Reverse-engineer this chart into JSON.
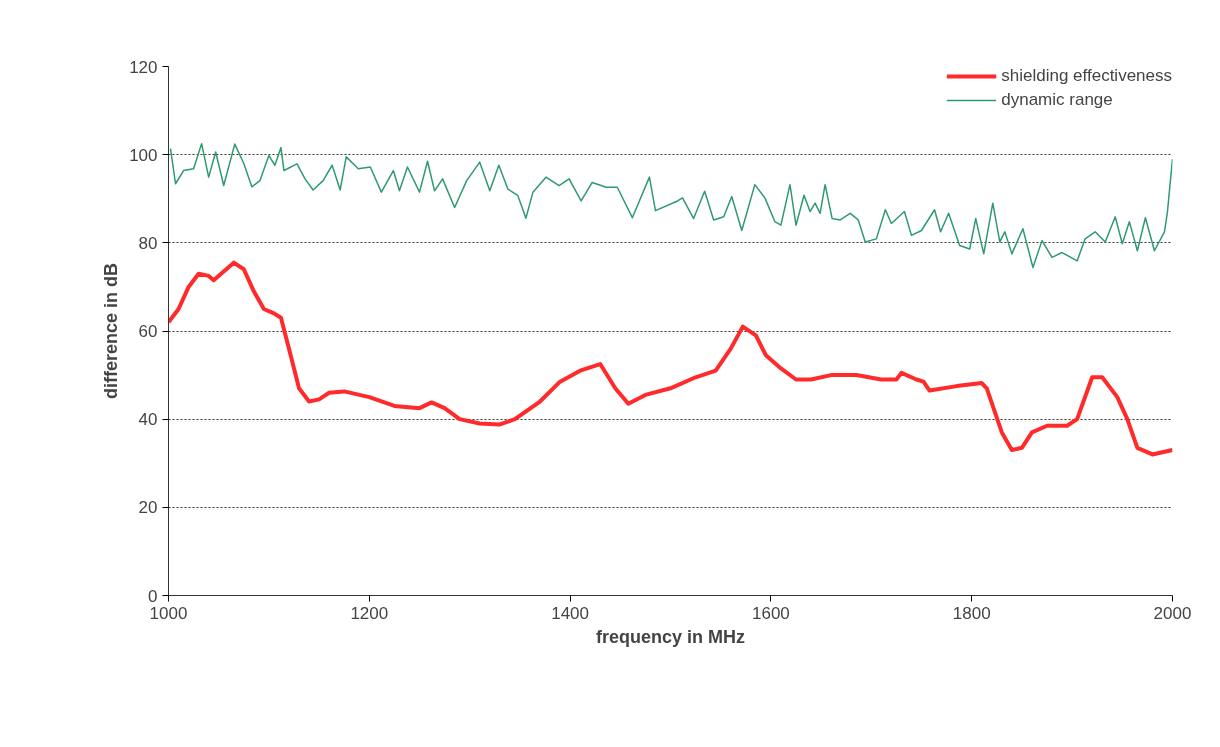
{
  "chart_data": {
    "type": "line",
    "xlabel": "frequency in MHz",
    "ylabel": "difference in dB",
    "xlim": [
      1000,
      2000
    ],
    "ylim": [
      0,
      120
    ],
    "xticks": [
      1000,
      1200,
      1400,
      1600,
      1800,
      2000
    ],
    "yticks": [
      0,
      20,
      40,
      60,
      80,
      100,
      120
    ],
    "grid": "y",
    "legend": "top right",
    "marker": "none",
    "line_style": "solid",
    "series": [
      {
        "name": "shielding effectiveness",
        "color": "#ff2a2a",
        "x": [
          1000,
          1010,
          1020,
          1030,
          1040,
          1045,
          1055,
          1065,
          1075,
          1085,
          1095,
          1105,
          1112,
          1120,
          1130,
          1140,
          1150,
          1160,
          1175,
          1200,
          1225,
          1250,
          1262,
          1275,
          1290,
          1310,
          1330,
          1345,
          1370,
          1390,
          1410,
          1430,
          1445,
          1458,
          1475,
          1500,
          1525,
          1545,
          1560,
          1572,
          1585,
          1595,
          1610,
          1625,
          1640,
          1660,
          1685,
          1710,
          1725,
          1730,
          1745,
          1752,
          1758,
          1785,
          1810,
          1815,
          1830,
          1840,
          1850,
          1860,
          1875,
          1895,
          1905,
          1920,
          1930,
          1945,
          1955,
          1965,
          1980,
          2000
        ],
        "values": [
          62,
          65,
          70,
          73,
          72.5,
          71.5,
          73.5,
          75.5,
          74,
          69,
          65,
          64,
          63,
          56,
          47,
          44,
          44.5,
          46,
          46.3,
          45,
          43,
          42.5,
          43.8,
          42.5,
          40,
          39,
          38.8,
          40,
          44,
          48.5,
          51,
          52.5,
          47,
          43.5,
          45.5,
          47,
          49.5,
          51,
          56,
          61,
          59,
          54.5,
          51.5,
          49,
          49,
          50,
          50,
          49,
          49,
          50.5,
          49,
          48.5,
          46.5,
          47.5,
          48.2,
          47,
          37,
          33,
          33.5,
          37,
          38.5,
          38.5,
          40,
          49.5,
          49.5,
          45,
          40,
          33.5,
          32,
          33
        ]
      },
      {
        "name": "dynamic range",
        "color": "#2e9a6e",
        "x": [
          1002,
          1007,
          1015,
          1025,
          1033,
          1040,
          1047,
          1055,
          1066,
          1075,
          1083,
          1091,
          1100,
          1106,
          1112,
          1115,
          1128,
          1136,
          1144,
          1154,
          1163,
          1171,
          1177,
          1189,
          1201,
          1212,
          1224,
          1230,
          1238,
          1250,
          1258,
          1265,
          1273,
          1285,
          1297,
          1310,
          1320,
          1329,
          1338,
          1348,
          1356,
          1363,
          1376,
          1389,
          1399,
          1411,
          1422,
          1436,
          1447,
          1462,
          1479,
          1485,
          1507,
          1512,
          1523,
          1534,
          1543,
          1553,
          1561,
          1571,
          1584,
          1594,
          1604,
          1610,
          1619,
          1625,
          1633,
          1639,
          1644,
          1649,
          1654,
          1661,
          1669,
          1679,
          1687,
          1694,
          1705,
          1714,
          1720,
          1733,
          1740,
          1750,
          1763,
          1769,
          1777,
          1788,
          1798,
          1804,
          1812,
          1821,
          1828,
          1833,
          1840,
          1851,
          1861,
          1870,
          1880,
          1890,
          1905,
          1913,
          1923,
          1933,
          1943,
          1950,
          1957,
          1965,
          1973,
          1982,
          1992,
          1995,
          2000
        ],
        "values": [
          101.4,
          93.4,
          96.4,
          96.8,
          102.5,
          94.9,
          100.6,
          93,
          102.4,
          98,
          92.7,
          94.1,
          99.8,
          97.6,
          101.6,
          96.4,
          97.9,
          94.5,
          92,
          94.1,
          97.6,
          92,
          99.5,
          96.8,
          97.2,
          91.5,
          96.4,
          91.8,
          97.2,
          91.5,
          98.5,
          91.8,
          94.5,
          88,
          94.1,
          98.3,
          91.8,
          97.6,
          92.2,
          90.7,
          85.6,
          91.5,
          94.9,
          93,
          94.5,
          89.5,
          93.7,
          92.6,
          92.6,
          85.7,
          94.9,
          87.3,
          89.5,
          90.2,
          85.5,
          91.7,
          85.2,
          85.9,
          90.5,
          82.8,
          93.2,
          90.2,
          84.8,
          84,
          93.2,
          84,
          90.8,
          87.1,
          89,
          86.7,
          93.2,
          85.5,
          85.2,
          86.7,
          85.2,
          80.2,
          80.9,
          87.5,
          84.4,
          87.1,
          81.7,
          82.8,
          87.5,
          82.5,
          86.7,
          79.4,
          78.6,
          85.5,
          77.5,
          89,
          80.2,
          82.5,
          77.5,
          83.2,
          74.4,
          80.5,
          76.7,
          77.8,
          75.9,
          80.9,
          82.5,
          80.2,
          85.9,
          79.8,
          84.8,
          78.2,
          85.7,
          78.2,
          82.5,
          87.1,
          99
        ]
      }
    ]
  }
}
